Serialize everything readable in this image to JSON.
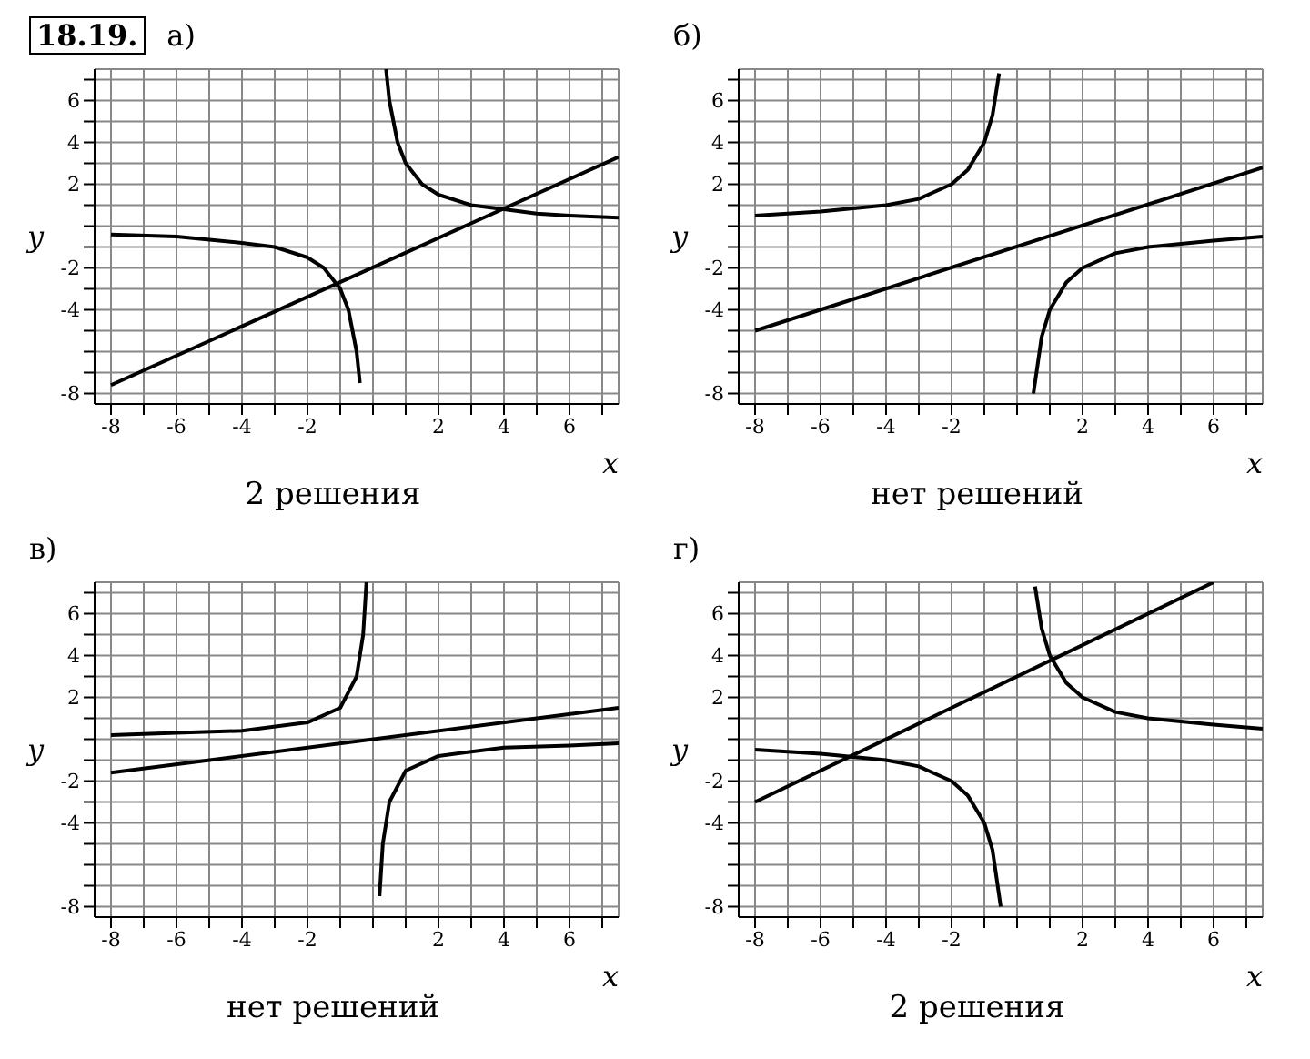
{
  "chart_data": [
    {
      "type": "line",
      "subtitle": "18.19.",
      "title": "а)",
      "xlabel": "x",
      "ylabel": "y",
      "annotations": [
        "2 решения"
      ],
      "xlim": [
        -8.5,
        7.5
      ],
      "ylim": [
        -8.5,
        7.5
      ],
      "xticks": [
        -8,
        {
          "value": -7,
          "label": null
        },
        -6,
        {
          "value": -5,
          "label": null
        },
        -4,
        {
          "value": -3,
          "label": null
        },
        -2,
        {
          "value": -1,
          "label": null
        },
        {
          "value": 0,
          "label": null
        },
        {
          "value": 1,
          "label": null
        },
        2,
        {
          "value": 3,
          "label": null
        },
        4,
        {
          "value": 5,
          "label": null
        },
        6,
        {
          "value": 7,
          "label": null
        }
      ],
      "yticks": [
        -8,
        {
          "value": -7,
          "label": null
        },
        {
          "value": -6,
          "label": null
        },
        {
          "value": -5,
          "label": null
        },
        -4,
        {
          "value": -3,
          "label": null
        },
        -2,
        {
          "value": -1,
          "label": null
        },
        {
          "value": 0,
          "label": null
        },
        {
          "value": 1,
          "label": null
        },
        2,
        {
          "value": 3,
          "label": null
        },
        4,
        {
          "value": 5,
          "label": null
        },
        6,
        {
          "value": 7,
          "label": null
        }
      ],
      "grid": true,
      "marker": "none",
      "line_style": "solid",
      "series": [
        {
          "color": "#000000",
          "x": [
            0.4,
            0.5,
            0.75,
            1,
            1.5,
            2,
            3,
            4,
            5,
            6,
            7.5
          ],
          "values": [
            7.5,
            6,
            4,
            3,
            2,
            1.5,
            1,
            0.8,
            0.6,
            0.5,
            0.4
          ]
        },
        {
          "color": "#000000",
          "x": [
            -8,
            -6,
            -4,
            -3,
            -2,
            -1.5,
            -1,
            -0.75,
            -0.5,
            -0.4
          ],
          "values": [
            -0.4,
            -0.5,
            -0.8,
            -1,
            -1.5,
            -2,
            -3,
            -4,
            -6,
            -7.5
          ]
        },
        {
          "color": "#000000",
          "x": [
            -8,
            7.5
          ],
          "values": [
            -7.6,
            3.3
          ]
        }
      ]
    },
    {
      "type": "line",
      "title": "б)",
      "xlabel": "x",
      "ylabel": "y",
      "annotations": [
        "нет решений"
      ],
      "xlim": [
        -8.5,
        7.5
      ],
      "ylim": [
        -8.5,
        7.5
      ],
      "xticks": [
        -8,
        {
          "value": -7,
          "label": null
        },
        -6,
        {
          "value": -5,
          "label": null
        },
        -4,
        {
          "value": -3,
          "label": null
        },
        -2,
        {
          "value": -1,
          "label": null
        },
        {
          "value": 0,
          "label": null
        },
        {
          "value": 1,
          "label": null
        },
        2,
        {
          "value": 3,
          "label": null
        },
        4,
        {
          "value": 5,
          "label": null
        },
        6,
        {
          "value": 7,
          "label": null
        }
      ],
      "yticks": [
        -8,
        {
          "value": -7,
          "label": null
        },
        {
          "value": -6,
          "label": null
        },
        {
          "value": -5,
          "label": null
        },
        -4,
        {
          "value": -3,
          "label": null
        },
        -2,
        {
          "value": -1,
          "label": null
        },
        {
          "value": 0,
          "label": null
        },
        {
          "value": 1,
          "label": null
        },
        2,
        {
          "value": 3,
          "label": null
        },
        4,
        {
          "value": 5,
          "label": null
        },
        6,
        {
          "value": 7,
          "label": null
        }
      ],
      "grid": true,
      "marker": "none",
      "line_style": "solid",
      "series": [
        {
          "color": "#000000",
          "x": [
            -8,
            -6,
            -4,
            -3,
            -2,
            -1.5,
            -1,
            -0.75,
            -0.55
          ],
          "values": [
            0.5,
            0.7,
            1,
            1.3,
            2,
            2.7,
            4,
            5.3,
            7.3
          ]
        },
        {
          "color": "#000000",
          "x": [
            0.5,
            0.75,
            1,
            1.5,
            2,
            3,
            4,
            6,
            7.5
          ],
          "values": [
            -8,
            -5.3,
            -4,
            -2.7,
            -2,
            -1.3,
            -1,
            -0.7,
            -0.5
          ]
        },
        {
          "color": "#000000",
          "x": [
            -8,
            7.5
          ],
          "values": [
            -5,
            2.8
          ]
        }
      ]
    },
    {
      "type": "line",
      "title": "в)",
      "xlabel": "x",
      "ylabel": "y",
      "annotations": [
        "нет решений"
      ],
      "xlim": [
        -8.5,
        7.5
      ],
      "ylim": [
        -8.5,
        7.5
      ],
      "xticks": [
        -8,
        {
          "value": -7,
          "label": null
        },
        -6,
        {
          "value": -5,
          "label": null
        },
        -4,
        {
          "value": -3,
          "label": null
        },
        -2,
        {
          "value": -1,
          "label": null
        },
        {
          "value": 0,
          "label": null
        },
        {
          "value": 1,
          "label": null
        },
        2,
        {
          "value": 3,
          "label": null
        },
        4,
        {
          "value": 5,
          "label": null
        },
        6,
        {
          "value": 7,
          "label": null
        }
      ],
      "yticks": [
        -8,
        {
          "value": -7,
          "label": null
        },
        {
          "value": -6,
          "label": null
        },
        {
          "value": -5,
          "label": null
        },
        -4,
        {
          "value": -3,
          "label": null
        },
        -2,
        {
          "value": -1,
          "label": null
        },
        {
          "value": 0,
          "label": null
        },
        {
          "value": 1,
          "label": null
        },
        2,
        {
          "value": 3,
          "label": null
        },
        4,
        {
          "value": 5,
          "label": null
        },
        6,
        {
          "value": 7,
          "label": null
        }
      ],
      "grid": true,
      "marker": "none",
      "line_style": "solid",
      "series": [
        {
          "color": "#000000",
          "x": [
            -8,
            -6,
            -4,
            -2,
            -1,
            -0.5,
            -0.3,
            -0.2
          ],
          "values": [
            0.2,
            0.3,
            0.4,
            0.8,
            1.5,
            3,
            5,
            7.5
          ]
        },
        {
          "color": "#000000",
          "x": [
            0.2,
            0.3,
            0.5,
            1,
            2,
            4,
            6,
            7.5
          ],
          "values": [
            -7.5,
            -5,
            -3,
            -1.5,
            -0.8,
            -0.4,
            -0.3,
            -0.2
          ]
        },
        {
          "color": "#000000",
          "x": [
            -8,
            7.5
          ],
          "values": [
            -1.6,
            1.5
          ]
        }
      ]
    },
    {
      "type": "line",
      "title": "г)",
      "xlabel": "x",
      "ylabel": "y",
      "annotations": [
        "2 решения"
      ],
      "xlim": [
        -8.5,
        7.5
      ],
      "ylim": [
        -8.5,
        7.5
      ],
      "xticks": [
        -8,
        {
          "value": -7,
          "label": null
        },
        -6,
        {
          "value": -5,
          "label": null
        },
        -4,
        {
          "value": -3,
          "label": null
        },
        -2,
        {
          "value": -1,
          "label": null
        },
        {
          "value": 0,
          "label": null
        },
        {
          "value": 1,
          "label": null
        },
        2,
        {
          "value": 3,
          "label": null
        },
        4,
        {
          "value": 5,
          "label": null
        },
        6,
        {
          "value": 7,
          "label": null
        }
      ],
      "yticks": [
        -8,
        {
          "value": -7,
          "label": null
        },
        {
          "value": -6,
          "label": null
        },
        {
          "value": -5,
          "label": null
        },
        -4,
        {
          "value": -3,
          "label": null
        },
        -2,
        {
          "value": -1,
          "label": null
        },
        {
          "value": 0,
          "label": null
        },
        {
          "value": 1,
          "label": null
        },
        2,
        {
          "value": 3,
          "label": null
        },
        4,
        {
          "value": 5,
          "label": null
        },
        6,
        {
          "value": 7,
          "label": null
        }
      ],
      "grid": true,
      "marker": "none",
      "line_style": "solid",
      "series": [
        {
          "color": "#000000",
          "x": [
            0.55,
            0.75,
            1,
            1.5,
            2,
            3,
            4,
            6,
            7.5
          ],
          "values": [
            7.3,
            5.3,
            4,
            2.7,
            2,
            1.3,
            1,
            0.7,
            0.5
          ]
        },
        {
          "color": "#000000",
          "x": [
            -8,
            -6,
            -4,
            -3,
            -2,
            -1.5,
            -1,
            -0.75,
            -0.5
          ],
          "values": [
            -0.5,
            -0.7,
            -1,
            -1.3,
            -2,
            -2.7,
            -4,
            -5.3,
            -8
          ]
        },
        {
          "color": "#000000",
          "x": [
            -8,
            6
          ],
          "values": [
            -3,
            7.5
          ]
        }
      ]
    }
  ]
}
